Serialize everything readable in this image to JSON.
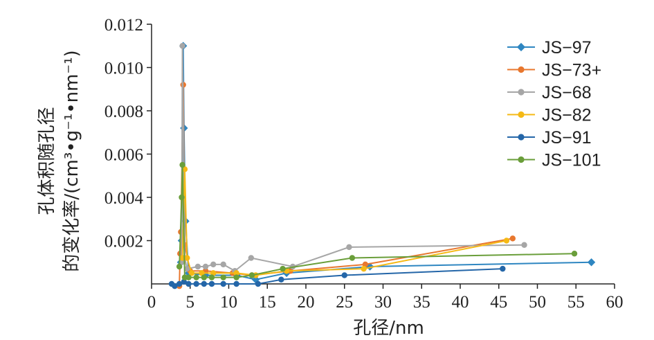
{
  "chart_data": {
    "type": "line",
    "xlabel": "孔径/nm",
    "ylabel_line1": "孔体积随孔径",
    "ylabel_line2": "的变化率/(cm³•g⁻¹•nm⁻¹)",
    "xlim": [
      0,
      60
    ],
    "ylim": [
      0,
      0.012
    ],
    "xticks": [
      0,
      5,
      10,
      15,
      20,
      25,
      30,
      35,
      40,
      45,
      50,
      55,
      60
    ],
    "yticks": [
      0.002,
      0.004,
      0.006,
      0.008,
      0.01,
      0.012
    ],
    "ytick_labels": [
      "0.002",
      "0.004",
      "0.006",
      "0.008",
      "0.010",
      "0.012"
    ],
    "legend_position": "top-right",
    "series": [
      {
        "name": "JS−97",
        "color": "#2E86C1",
        "marker": "diamond",
        "x": [
          3.8,
          3.9,
          4.1,
          4.2,
          4.4,
          4.8,
          7.0,
          11.0,
          13.5,
          17.5,
          28.3,
          57.0
        ],
        "y": [
          0.001,
          0.002,
          0.011,
          0.0072,
          0.0029,
          0.0005,
          0.0004,
          0.0004,
          0.0002,
          0.0005,
          0.0008,
          0.001
        ]
      },
      {
        "name": "JS−73+",
        "color": "#E8772E",
        "marker": "circle",
        "x": [
          3.6,
          3.7,
          3.8,
          4.1,
          4.3,
          5.0,
          7.0,
          10.5,
          13.0,
          18.0,
          27.7,
          46.8
        ],
        "y": [
          -0.0001,
          0.0014,
          0.0024,
          0.0092,
          0.0018,
          0.0006,
          0.0006,
          0.0005,
          0.0004,
          0.0006,
          0.0009,
          0.0021
        ]
      },
      {
        "name": "JS−68",
        "color": "#A6A6A6",
        "marker": "circle",
        "x": [
          3.9,
          4.0,
          4.3,
          4.6,
          6.0,
          7.0,
          8.0,
          9.3,
          10.8,
          12.9,
          18.3,
          25.6,
          48.3
        ],
        "y": [
          0.001,
          0.011,
          0.0012,
          0.0007,
          0.0008,
          0.0008,
          0.0009,
          0.0009,
          0.0006,
          0.0012,
          0.0008,
          0.0017,
          0.0018
        ]
      },
      {
        "name": "JS−82",
        "color": "#F5B915",
        "marker": "circle",
        "x": [
          4.0,
          4.3,
          4.6,
          5.2,
          6.5,
          8.0,
          11.0,
          13.5,
          17.5,
          27.5,
          46.0
        ],
        "y": [
          0.0012,
          0.0053,
          0.0012,
          0.0005,
          0.0005,
          0.0005,
          0.0005,
          0.0004,
          0.0006,
          0.0007,
          0.002
        ]
      },
      {
        "name": "JS−91",
        "color": "#2466A8",
        "marker": "circle",
        "x": [
          2.6,
          3.0,
          3.6,
          4.2,
          4.8,
          5.8,
          6.8,
          7.8,
          9.3,
          11.0,
          13.8,
          16.8,
          25.0,
          45.5
        ],
        "y": [
          0.0,
          -0.0001,
          0.0,
          0.0001,
          0.0,
          0.0,
          0.0,
          0.0,
          0.0,
          0.0,
          0.0,
          0.0002,
          0.0004,
          0.0007
        ]
      },
      {
        "name": "JS−101",
        "color": "#6A9E3A",
        "marker": "circle",
        "x": [
          3.6,
          3.9,
          4.0,
          4.3,
          4.8,
          5.8,
          6.8,
          7.8,
          9.3,
          11.0,
          13.0,
          17.0,
          26.0,
          54.8
        ],
        "y": [
          0.0008,
          0.004,
          0.0055,
          0.0003,
          0.0003,
          0.0003,
          0.0003,
          0.0003,
          0.0003,
          0.0003,
          0.0004,
          0.0007,
          0.0012,
          0.0014
        ]
      }
    ]
  }
}
